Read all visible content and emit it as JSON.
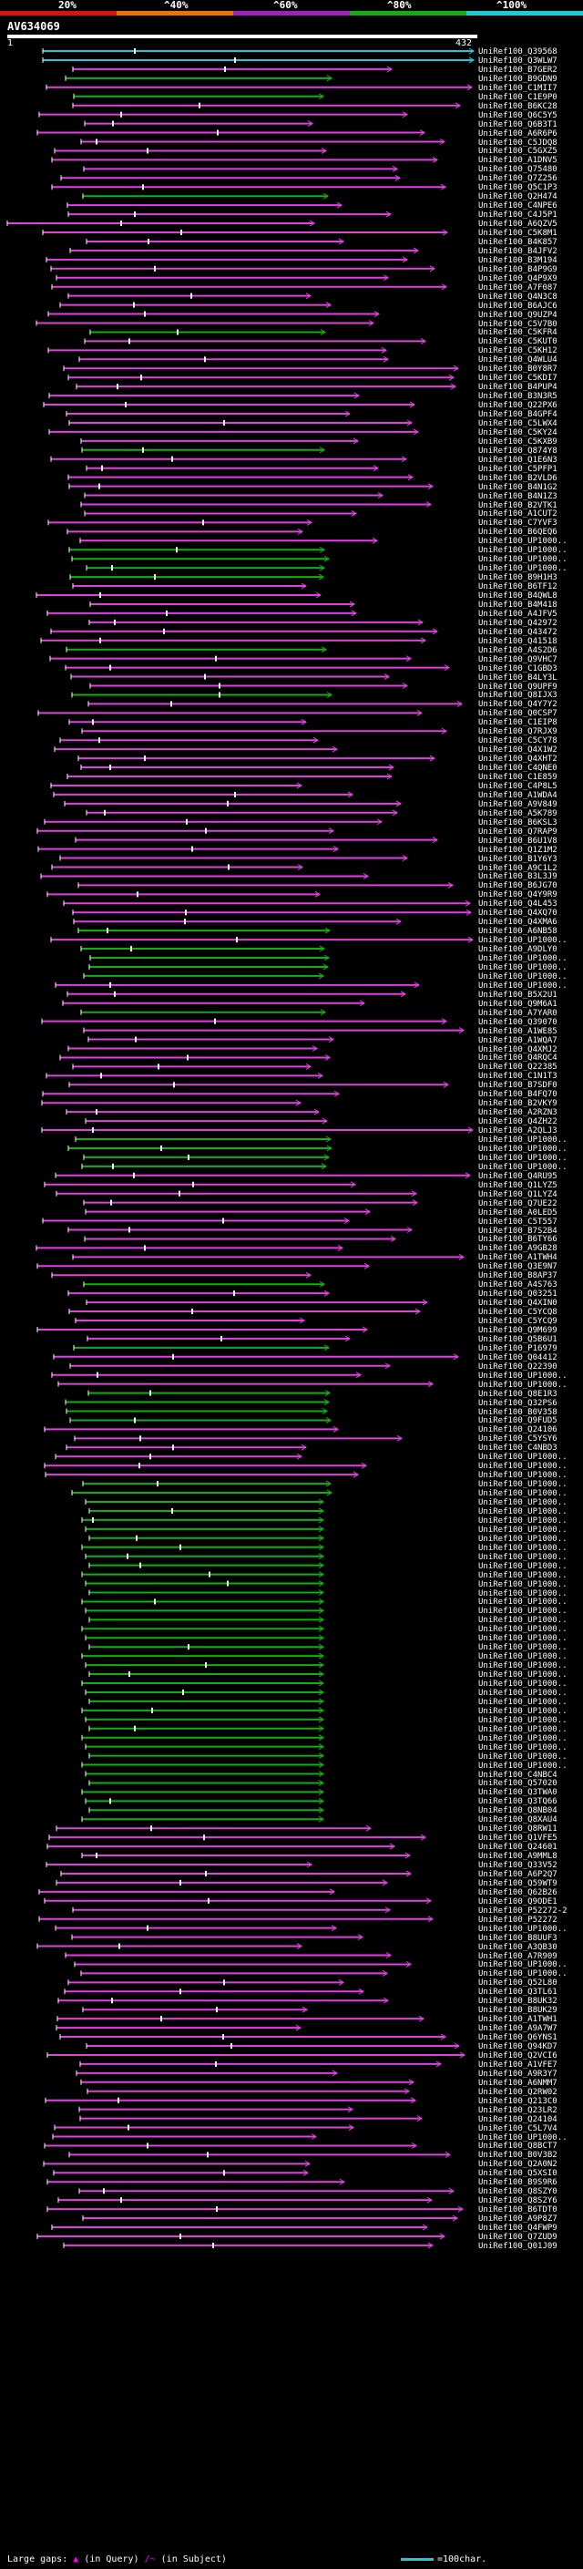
{
  "legend": {
    "colors": [
      "#e01010",
      "#f07010",
      "#a020c0",
      "#10b010",
      "#20c8d8"
    ],
    "labels": [
      "20%",
      "^40%",
      "^60%",
      "^80%",
      "^100%"
    ]
  },
  "query": {
    "name": "AV634069",
    "start": "1",
    "end": "432"
  },
  "colors": {
    "c100": "#20c8d8",
    "c80": "#10b010",
    "c60": "#a020c0",
    "c40": "#f07010",
    "c20": "#e01010",
    "pink": "#e040e0"
  },
  "hits": [
    "UniRef100_Q39568",
    "UniRef100_Q3WLW7",
    "UniRef100_B7GER2",
    "UniRef100_B9GDN9",
    "UniRef100_C1MII7",
    "UniRef100_C1E9P0",
    "UniRef100_B6KC28",
    "UniRef100_Q6C5Y5",
    "UniRef100_Q6B3T1",
    "UniRef100_A6R6P6",
    "UniRef100_C5JDQ8",
    "UniRef100_C5GXZ5",
    "UniRef100_A1DNV5",
    "UniRef100_Q75480",
    "UniRef100_Q7Z256",
    "UniRef100_Q5C1P3",
    "UniRef100_Q2H474",
    "UniRef100_C4NPE6",
    "UniRef100_C4J5P1",
    "UniRef100_A6QZV5",
    "UniRef100_C5K8M1",
    "UniRef100_B4K857",
    "UniRef100_B4JFV2",
    "UniRef100_B3M194",
    "UniRef100_B4P9G9",
    "UniRef100_Q4P9X9",
    "UniRef100_A7F087",
    "UniRef100_Q4N3C8",
    "UniRef100_B6AJC6",
    "UniRef100_Q9UZP4",
    "UniRef100_C5V7B0",
    "UniRef100_C5KFR4",
    "UniRef100_C5KUT0",
    "UniRef100_C5KH12",
    "UniRef100_Q4WLU4",
    "UniRef100_B0Y8R7",
    "UniRef100_C5KDI7",
    "UniRef100_B4PUP4",
    "UniRef100_B3N3R5",
    "UniRef100_Q22PX6",
    "UniRef100_B4GPF4",
    "UniRef100_C5LWX4",
    "UniRef100_C5KY24",
    "UniRef100_C5KXB9",
    "UniRef100_Q874Y8",
    "UniRef100_Q1E6N3",
    "UniRef100_C5PFP1",
    "UniRef100_B2VLD6",
    "UniRef100_B4N1G2",
    "UniRef100_B4N1Z3",
    "UniRef100_B2VTK1",
    "UniRef100_A1CUT2",
    "UniRef100_C7YVF3",
    "UniRef100_B6QEQ6",
    "UniRef100_UP1000..",
    "UniRef100_UP1000..",
    "UniRef100_UP1000..",
    "UniRef100_UP1000..",
    "UniRef100_B9H1H3",
    "UniRef100_B6TF12",
    "UniRef100_B4QWL8",
    "UniRef100_B4M418",
    "UniRef100_A4JFV5",
    "UniRef100_Q42972",
    "UniRef100_Q43472",
    "UniRef100_Q41518",
    "UniRef100_A4S2D6",
    "UniRef100_Q9VHC7",
    "UniRef100_C1GBD3",
    "UniRef100_B4LY3L",
    "UniRef100_Q9UPF9",
    "UniRef100_Q8IJX3",
    "UniRef100_Q4Y7Y2",
    "UniRef100_Q0CSP7",
    "UniRef100_C1EIP8",
    "UniRef100_Q7RJX9",
    "UniRef100_C5CY78",
    "UniRef100_Q4X1W2",
    "UniRef100_Q4XHT2",
    "UniRef100_C4QNE0",
    "UniRef100_C1E859",
    "UniRef100_C4P8L5",
    "UniRef100_A1WDA4",
    "UniRef100_A9V849",
    "UniRef100_A5K789",
    "UniRef100_B6KSL3",
    "UniRef100_Q7RAP9",
    "UniRef100_B6U1V8",
    "UniRef100_Q1Z1M2",
    "UniRef100_B1Y6Y3",
    "UniRef100_A9C1L2",
    "UniRef100_B3L3J9",
    "UniRef100_B6JG70",
    "UniRef100_Q4Y9R9",
    "UniRef100_Q4L453",
    "UniRef100_Q4XQ70",
    "UniRef100_Q4XMA6",
    "UniRef100_A6NB58",
    "UniRef100_UP1000..",
    "UniRef100_A9DLY0",
    "UniRef100_UP1000..",
    "UniRef100_UP1000..",
    "UniRef100_UP1000..",
    "UniRef100_UP1000..",
    "UniRef100_B5X2U1",
    "UniRef100_Q9M6A1",
    "UniRef100_A7YAR0",
    "UniRef100_Q39070",
    "UniRef100_A1WE85",
    "UniRef100_A1WQA7",
    "UniRef100_Q4XMJ2",
    "UniRef100_Q4RQC4",
    "UniRef100_Q22385",
    "UniRef100_C1N1T3",
    "UniRef100_B7SDF0",
    "UniRef100_B4FQ70",
    "UniRef100_B2VKY9",
    "UniRef100_A2RZN3",
    "UniRef100_Q4ZH22",
    "UniRef100_A2QLJ3",
    "UniRef100_UP1000..",
    "UniRef100_UP1000..",
    "UniRef100_UP1000..",
    "UniRef100_UP1000..",
    "UniRef100_Q4RU95",
    "UniRef100_Q1LYZ5",
    "UniRef100_Q1LYZ4",
    "UniRef100_Q7UE22",
    "UniRef100_A0LED5",
    "UniRef100_C5T557",
    "UniRef100_B7S2B4",
    "UniRef100_B6TY66",
    "UniRef100_A9GB28",
    "UniRef100_A1TWH4",
    "UniRef100_Q3E9N7",
    "UniRef100_B8AP37",
    "UniRef100_A4S763",
    "UniRef100_Q03251",
    "UniRef100_Q4XIN0",
    "UniRef100_C5YCQ8",
    "UniRef100_C5YCQ9",
    "UniRef100_Q9M699",
    "UniRef100_Q5B6U1",
    "UniRef100_P16979",
    "UniRef100_Q04412",
    "UniRef100_Q22390",
    "UniRef100_UP1000..",
    "UniRef100_UP1000..",
    "UniRef100_Q8E1R3",
    "UniRef100_Q32PS6",
    "UniRef100_B0V358",
    "UniRef100_Q9FUD5",
    "UniRef100_Q24106",
    "UniRef100_C5YSY6",
    "UniRef100_C4NBD3",
    "UniRef100_UP1000..",
    "UniRef100_UP1000..",
    "UniRef100_UP1000..",
    "UniRef100_UP1000..",
    "UniRef100_UP1000..",
    "UniRef100_UP1000..",
    "UniRef100_UP1000..",
    "UniRef100_UP1000..",
    "UniRef100_UP1000..",
    "UniRef100_UP1000..",
    "UniRef100_UP1000..",
    "UniRef100_UP1000..",
    "UniRef100_UP1000..",
    "UniRef100_UP1000..",
    "UniRef100_UP1000..",
    "UniRef100_UP1000..",
    "UniRef100_UP1000..",
    "UniRef100_UP1000..",
    "UniRef100_UP1000..",
    "UniRef100_UP1000..",
    "UniRef100_UP1000..",
    "UniRef100_UP1000..",
    "UniRef100_UP1000..",
    "UniRef100_UP1000..",
    "UniRef100_UP1000..",
    "UniRef100_UP1000..",
    "UniRef100_UP1000..",
    "UniRef100_UP1000..",
    "UniRef100_UP1000..",
    "UniRef100_UP1000..",
    "UniRef100_UP1000..",
    "UniRef100_UP1000..",
    "UniRef100_UP1000..",
    "UniRef100_UP1000..",
    "UniRef100_UP1000..",
    "UniRef100_C4NBC4",
    "UniRef100_Q57020",
    "UniRef100_Q3TWA0",
    "UniRef100_Q3TQ66",
    "UniRef100_Q8NB04",
    "UniRef100_Q8XAU4",
    "UniRef100_Q8RW11",
    "UniRef100_Q1VFE5",
    "UniRef100_Q24601",
    "UniRef100_A9MML8",
    "UniRef100_Q33V52",
    "UniRef100_A6P2Q7",
    "UniRef100_Q59WT9",
    "UniRef100_Q62B26",
    "UniRef100_Q9ODE1",
    "UniRef100_P52272-2",
    "UniRef100_P52272",
    "UniRef100_UP1000..",
    "UniRef100_B8UUF3",
    "UniRef100_A3QB30",
    "UniRef100_A7R909",
    "UniRef100_UP1000..",
    "UniRef100_UP1000..",
    "UniRef100_Q52L80",
    "UniRef100_Q3TL61",
    "UniRef100_B8UK32",
    "UniRef100_B8UK29",
    "UniRef100_A1TWH1",
    "UniRef100_A9A7W7",
    "UniRef100_Q6YNS1",
    "UniRef100_Q94KD7",
    "UniRef100_Q2VCI6",
    "UniRef100_A1VFE7",
    "UniRef100_A9R3Y7",
    "UniRef100_A6NMM7",
    "UniRef100_Q2RW02",
    "UniRef100_Q213C0",
    "UniRef100_Q23LR2",
    "UniRef100_Q24104",
    "UniRef100_C5L7V4",
    "UniRef100_UP1000..",
    "UniRef100_Q8BCT7",
    "UniRef100_B0V3B2",
    "UniRef100_Q2A0N2",
    "UniRef100_Q5XSI0",
    "UniRef100_B9S9R6",
    "UniRef100_Q8SZY0",
    "UniRef100_Q8S2Y6",
    "UniRef100_B6TDT0",
    "UniRef100_A9P8Z7",
    "UniRef100_Q4FWP9",
    "UniRef100_Q7ZUD9",
    "UniRef100_Q01J09"
  ],
  "footer": {
    "text": "Large gaps:",
    "query_glyph": "▲",
    "query_note": "(in Query)",
    "subject_glyph": "/~",
    "subject_note": "(in Subject)",
    "scale": "=100char."
  }
}
